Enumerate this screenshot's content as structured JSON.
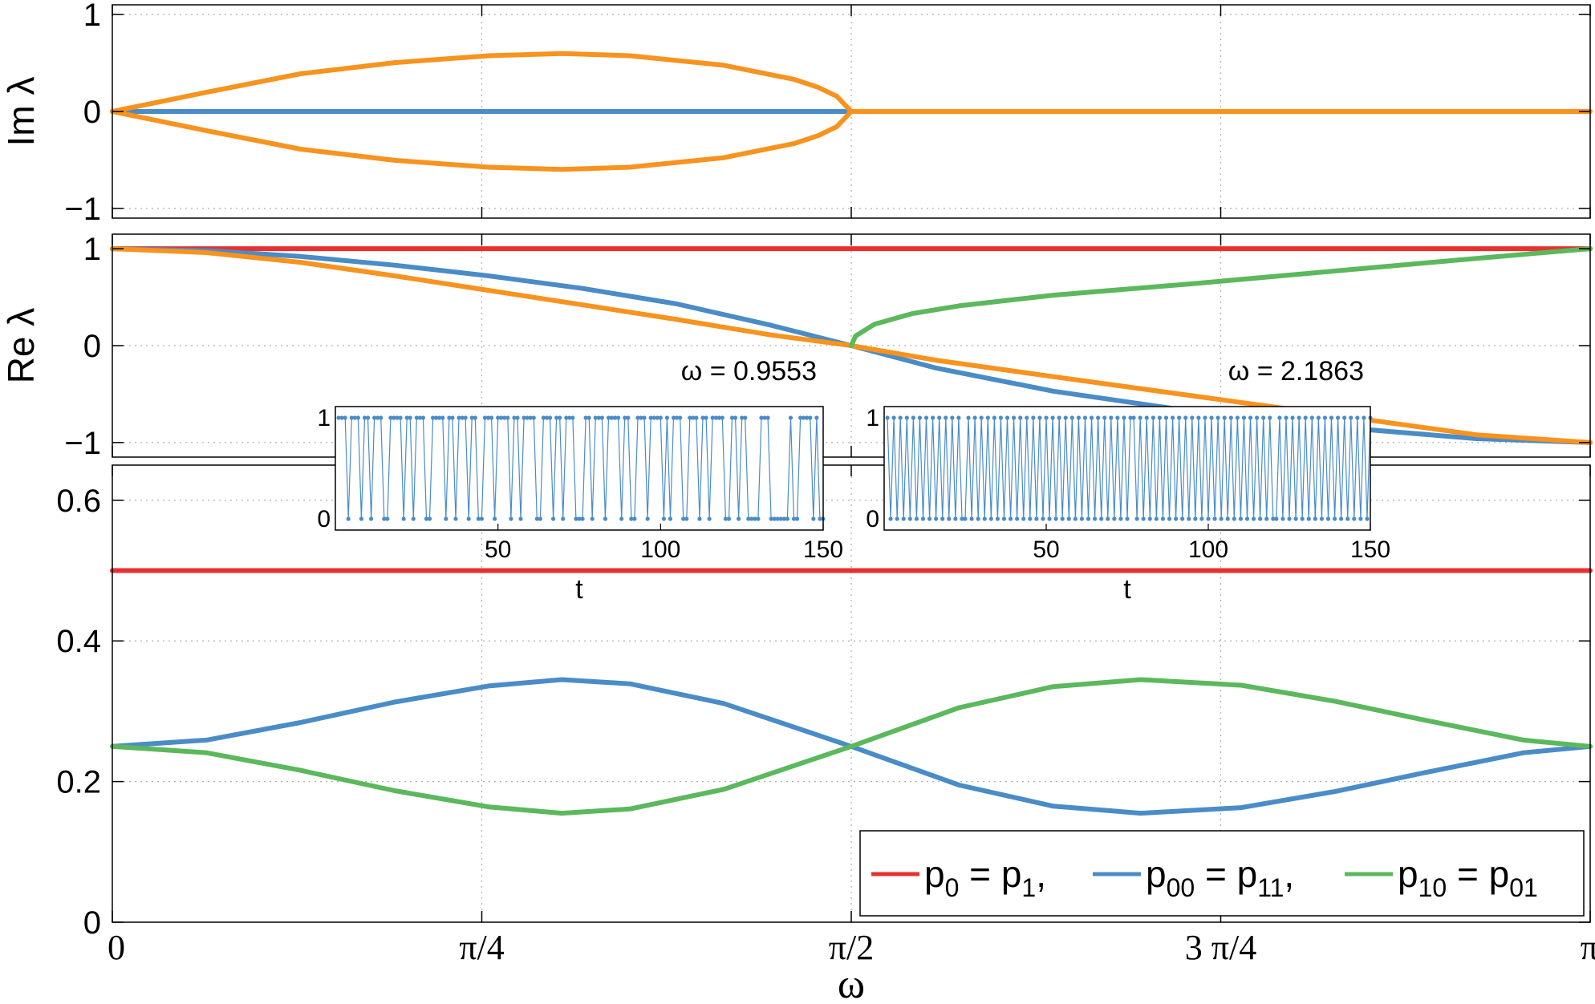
{
  "chart_data": [
    {
      "type": "line",
      "panel": "top",
      "ylabel": "Im λ",
      "xlim": [
        0,
        3.14159265
      ],
      "ylim": [
        -1.1,
        1.1
      ],
      "yticks": [
        -1,
        0,
        1
      ],
      "ytick_labels": [
        "−1",
        "0",
        "1"
      ],
      "grid": true,
      "series": [
        {
          "color": "#4a8cc7",
          "x": [
            0,
            1.5708
          ],
          "values": [
            0,
            0
          ]
        },
        {
          "color": "#f7931e",
          "x": [
            0,
            0.2,
            0.4,
            0.6,
            0.8,
            0.9553,
            1.1,
            1.3,
            1.45,
            1.5,
            1.54,
            1.5708
          ],
          "values": [
            0,
            0.198,
            0.389,
            0.504,
            0.575,
            0.598,
            0.575,
            0.476,
            0.33,
            0.25,
            0.157,
            0
          ]
        },
        {
          "color": "#f7931e",
          "x": [
            0,
            0.2,
            0.4,
            0.6,
            0.8,
            0.9553,
            1.1,
            1.3,
            1.45,
            1.5,
            1.54,
            1.5708
          ],
          "values": [
            0,
            -0.198,
            -0.389,
            -0.504,
            -0.575,
            -0.598,
            -0.575,
            -0.476,
            -0.33,
            -0.25,
            -0.157,
            0
          ]
        },
        {
          "color": "#f7931e",
          "x": [
            1.5708,
            3.14159
          ],
          "values": [
            0,
            0
          ]
        }
      ]
    },
    {
      "type": "line",
      "panel": "middle",
      "ylabel": "Re λ",
      "xlim": [
        0,
        3.14159265
      ],
      "ylim": [
        -1.15,
        1.15
      ],
      "yticks": [
        -1,
        0,
        1
      ],
      "ytick_labels": [
        "−1",
        "0",
        "1"
      ],
      "grid": true,
      "series": [
        {
          "color": "#e8302e",
          "x": [
            0,
            3.14159
          ],
          "values": [
            1,
            1
          ]
        },
        {
          "color": "#4a8cc7",
          "x": [
            0,
            0.2,
            0.4,
            0.6,
            0.8,
            1.0,
            1.2,
            1.4,
            1.5708,
            1.75,
            2.0,
            2.3,
            2.6,
            2.9,
            3.14159
          ],
          "values": [
            1,
            0.98,
            0.92,
            0.83,
            0.72,
            0.59,
            0.43,
            0.21,
            0,
            -0.23,
            -0.47,
            -0.68,
            -0.84,
            -0.96,
            -1
          ]
        },
        {
          "color": "#f7931e",
          "x": [
            0,
            0.2,
            0.4,
            0.6,
            0.8,
            1.0,
            1.2,
            1.4,
            1.5708,
            1.75,
            2.0,
            2.3,
            2.6,
            2.9,
            3.14159
          ],
          "values": [
            1,
            0.96,
            0.86,
            0.72,
            0.57,
            0.42,
            0.27,
            0.11,
            0,
            -0.15,
            -0.32,
            -0.52,
            -0.72,
            -0.92,
            -1
          ]
        },
        {
          "color": "#5cb85c",
          "x": [
            1.5708,
            1.58,
            1.62,
            1.7,
            1.8,
            2.0,
            2.3,
            2.6,
            2.9,
            3.14159
          ],
          "values": [
            0,
            0.1,
            0.22,
            0.33,
            0.41,
            0.52,
            0.64,
            0.77,
            0.9,
            1
          ]
        }
      ]
    },
    {
      "type": "line",
      "panel": "bottom",
      "xlabel": "ω",
      "xlim": [
        0,
        3.14159265
      ],
      "ylim": [
        0,
        0.65
      ],
      "yticks": [
        0,
        0.2,
        0.4,
        0.6
      ],
      "ytick_labels": [
        "0",
        "0.2",
        "0.4",
        "0.6"
      ],
      "xticks": [
        0,
        0.785398,
        1.570796,
        2.356194,
        3.141593
      ],
      "xtick_labels": [
        "0",
        "π/4",
        "π/2",
        "3 π/4",
        "π"
      ],
      "grid": true,
      "legend": "bottom-right",
      "series": [
        {
          "name": "p0 = p1,",
          "color": "#e8302e",
          "x": [
            0,
            3.14159
          ],
          "values": [
            0.5,
            0.5
          ]
        },
        {
          "name": "p00 = p11,",
          "color": "#4a8cc7",
          "x": [
            0,
            0.2,
            0.4,
            0.6,
            0.8,
            0.9553,
            1.1,
            1.3,
            1.5708,
            1.8,
            2.0,
            2.1863,
            2.4,
            2.6,
            2.8,
            3.0,
            3.14159
          ],
          "values": [
            0.25,
            0.259,
            0.284,
            0.313,
            0.336,
            0.345,
            0.339,
            0.311,
            0.25,
            0.195,
            0.165,
            0.155,
            0.163,
            0.186,
            0.214,
            0.241,
            0.25
          ]
        },
        {
          "name": "p10 = p01",
          "color": "#5cb85c",
          "x": [
            0,
            0.2,
            0.4,
            0.6,
            0.8,
            0.9553,
            1.1,
            1.3,
            1.5708,
            1.8,
            2.0,
            2.1863,
            2.4,
            2.6,
            2.8,
            3.0,
            3.14159
          ],
          "values": [
            0.25,
            0.241,
            0.216,
            0.187,
            0.164,
            0.155,
            0.161,
            0.189,
            0.25,
            0.305,
            0.335,
            0.345,
            0.337,
            0.314,
            0.286,
            0.259,
            0.25
          ]
        }
      ],
      "legend_items": [
        {
          "main": "p",
          "sub1": "0",
          "mid": " = p",
          "sub2": "1",
          "tail": ","
        },
        {
          "main": "p",
          "sub1": "00",
          "mid": " = p",
          "sub2": "11",
          "tail": ","
        },
        {
          "main": "p",
          "sub1": "10",
          "mid": " = p",
          "sub2": "01",
          "tail": ""
        }
      ]
    },
    {
      "type": "line",
      "panel": "inset-left",
      "title": "ω = 0.9553",
      "xlabel": "t",
      "xlim": [
        0,
        150
      ],
      "ylim": [
        0,
        1
      ],
      "xticks": [
        50,
        100,
        150
      ],
      "yticks": [
        0,
        1
      ],
      "markers": true,
      "color": "#4a8cc7",
      "values": [
        1,
        1,
        1,
        0,
        1,
        1,
        1,
        0,
        1,
        1,
        0,
        1,
        1,
        1,
        0,
        0,
        1,
        1,
        1,
        1,
        0,
        1,
        1,
        0,
        1,
        1,
        1,
        0,
        0,
        1,
        1,
        1,
        1,
        0,
        1,
        1,
        0,
        1,
        1,
        1,
        0,
        1,
        1,
        0,
        0,
        1,
        1,
        1,
        0,
        1,
        1,
        1,
        1,
        0,
        1,
        1,
        0,
        1,
        1,
        1,
        1,
        0,
        0,
        1,
        1,
        1,
        0,
        1,
        1,
        0,
        1,
        1,
        1,
        0,
        0,
        0,
        1,
        1,
        0,
        1,
        1,
        1,
        0,
        1,
        1,
        1,
        1,
        0,
        1,
        1,
        0,
        0,
        1,
        1,
        1,
        0,
        1,
        1,
        1,
        1,
        0,
        1,
        0,
        1,
        1,
        1,
        0,
        0,
        1,
        1,
        1,
        0,
        1,
        1,
        0,
        1,
        1,
        1,
        1,
        0,
        0,
        1,
        1,
        0,
        1,
        1,
        0,
        0,
        0,
        0,
        1,
        1,
        1,
        0,
        0,
        0,
        0,
        0,
        0,
        1,
        0,
        0,
        1,
        1,
        1,
        1,
        0,
        1,
        0,
        0
      ]
    },
    {
      "type": "line",
      "panel": "inset-right",
      "title": "ω = 2.1863",
      "xlabel": "t",
      "xlim": [
        0,
        150
      ],
      "ylim": [
        0,
        1
      ],
      "xticks": [
        50,
        100,
        150
      ],
      "yticks": [
        0,
        1
      ],
      "markers": true,
      "color": "#4a8cc7",
      "values": [
        1,
        0,
        1,
        0,
        1,
        0,
        1,
        0,
        1,
        0,
        1,
        0,
        1,
        0,
        1,
        0,
        1,
        0,
        1,
        0,
        1,
        0,
        1,
        0,
        0,
        1,
        0,
        1,
        0,
        1,
        0,
        1,
        0,
        1,
        0,
        1,
        0,
        1,
        0,
        1,
        0,
        1,
        0,
        1,
        0,
        1,
        0,
        1,
        0,
        1,
        0,
        1,
        0,
        1,
        0,
        1,
        0,
        1,
        0,
        1,
        0,
        1,
        0,
        1,
        0,
        1,
        0,
        1,
        0,
        1,
        0,
        1,
        0,
        1,
        0,
        1,
        1,
        0,
        1,
        0,
        1,
        0,
        1,
        0,
        1,
        0,
        1,
        0,
        1,
        0,
        1,
        0,
        1,
        0,
        1,
        0,
        1,
        0,
        1,
        0,
        1,
        0,
        1,
        0,
        1,
        0,
        1,
        0,
        1,
        0,
        1,
        0,
        1,
        0,
        1,
        0,
        1,
        0,
        1,
        0,
        0,
        1,
        0,
        1,
        0,
        1,
        0,
        1,
        0,
        1,
        0,
        1,
        0,
        1,
        0,
        1,
        0,
        1,
        0,
        1,
        0,
        1,
        0,
        1,
        0,
        1,
        0,
        1,
        0,
        1
      ]
    }
  ]
}
